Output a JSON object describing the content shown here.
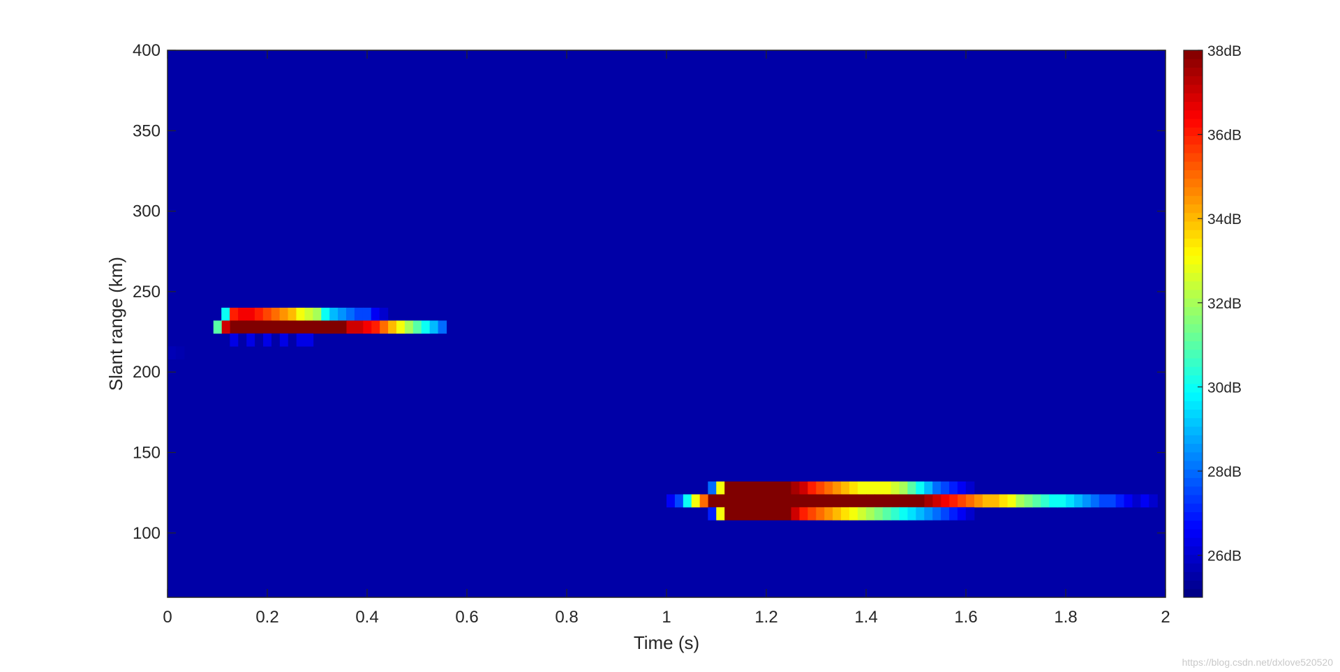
{
  "chart_data": {
    "type": "heatmap",
    "xlabel": "Time (s)",
    "ylabel": "Slant range (km)",
    "xlim": [
      0,
      2
    ],
    "ylim": [
      60,
      400
    ],
    "x_ticks": [
      "0",
      "0.2",
      "0.4",
      "0.6",
      "0.8",
      "1",
      "1.2",
      "1.4",
      "1.6",
      "1.8",
      "2"
    ],
    "y_ticks": [
      "100",
      "150",
      "200",
      "250",
      "300",
      "350",
      "400"
    ],
    "colormap": "jet",
    "colorbar": {
      "range": [
        25,
        38
      ],
      "ticks": [
        "26dB",
        "28dB",
        "30dB",
        "32dB",
        "34dB",
        "36dB",
        "38dB"
      ],
      "steps": 64
    },
    "background_db": 25.5,
    "cell_size": {
      "time_s": 0.01667,
      "range_km": 8
    },
    "targets": [
      {
        "name": "target-1",
        "rows": [
          {
            "range_km": 236,
            "t_start": 0.108,
            "values": [
              30,
              36,
              36.5,
              36.5,
              36,
              35.5,
              35,
              34.5,
              34,
              33,
              32.5,
              32,
              30,
              29,
              28.5,
              28,
              27.5,
              27.5,
              26.5,
              26
            ]
          },
          {
            "range_km": 228,
            "t_start": 0.092,
            "values": [
              31,
              37,
              38,
              38,
              38,
              38,
              38,
              38,
              38,
              38,
              38,
              38,
              38,
              38,
              38,
              38,
              37,
              37,
              36.5,
              36,
              35,
              34,
              33,
              32,
              31,
              30,
              29,
              28
            ]
          },
          {
            "range_km": 220,
            "t_start": 0.125,
            "values": [
              26.3,
              25.5,
              26.3,
              25.5,
              26.3,
              25.5,
              26.3,
              25.5,
              26.3,
              26.3
            ]
          },
          {
            "range_km": 212,
            "t_start": 0.0,
            "values": [
              25.7,
              25.6
            ]
          }
        ]
      },
      {
        "name": "target-2",
        "rows": [
          {
            "range_km": 128,
            "t_start": 1.083,
            "values": [
              28,
              33,
              38,
              38,
              38,
              38,
              38,
              38,
              38,
              38,
              37.5,
              37,
              36,
              35.5,
              35,
              34.5,
              34,
              33.5,
              33,
              33,
              33,
              33,
              32.5,
              32,
              31,
              30,
              29,
              28,
              27.5,
              27,
              26.5,
              26
            ]
          },
          {
            "range_km": 120,
            "t_start": 1.0,
            "values": [
              26.5,
              27.5,
              30,
              33,
              35,
              38,
              38,
              38,
              38,
              38,
              38,
              38,
              38,
              38,
              38,
              38,
              38,
              38,
              38,
              38,
              38,
              38,
              38,
              38,
              38,
              38,
              38,
              38,
              38,
              38,
              38,
              37.5,
              37,
              36.5,
              36,
              35.5,
              35,
              34.5,
              34,
              34,
              33.5,
              33,
              32,
              31.5,
              31,
              30.5,
              30,
              30,
              29.5,
              29,
              28.5,
              28,
              27.5,
              27.5,
              27,
              26.5,
              26,
              26.5,
              26
            ]
          },
          {
            "range_km": 112,
            "t_start": 1.083,
            "values": [
              27,
              33,
              38,
              38,
              38,
              38,
              38,
              38,
              38,
              38,
              37,
              36,
              35.5,
              35,
              34.5,
              34,
              33.5,
              33,
              32.5,
              32,
              31.5,
              31,
              30.5,
              30,
              29.5,
              29,
              28.5,
              28,
              27.5,
              27,
              26.5,
              26
            ]
          }
        ]
      }
    ]
  },
  "watermark": "https://blog.csdn.net/dxlove520520"
}
